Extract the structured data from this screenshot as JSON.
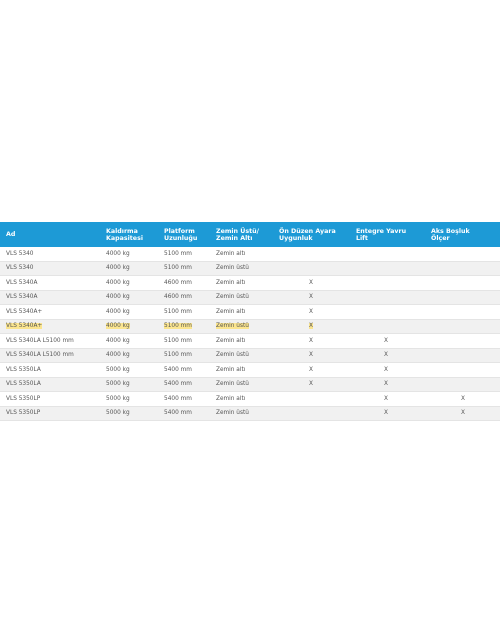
{
  "table": {
    "headers": [
      "Ad",
      "Kaldırma\nKapasitesi",
      "Platform\nUzunluğu",
      "Zemin Üstü/\nZemin Altı",
      "Ön Düzen Ayara\nUygunluk",
      "Entegre Yavru\nLift",
      "Aks Boşluk\nÖlçer"
    ],
    "rows": [
      [
        "VLS 5340",
        "4000 kg",
        "5100 mm",
        "Zemin altı",
        null,
        null,
        null
      ],
      [
        "VLS 5340",
        "4000 kg",
        "5100 mm",
        "Zemin üstü",
        null,
        null,
        null
      ],
      [
        "VLS 5340A",
        "4000 kg",
        "4600 mm",
        "Zemin altı",
        "X",
        null,
        null
      ],
      [
        "VLS 5340A",
        "4000 kg",
        "4600 mm",
        "Zemin üstü",
        "X",
        null,
        null
      ],
      [
        "VLS 5340A+",
        "4000 kg",
        "5100 mm",
        "Zemin altı",
        "X",
        null,
        null
      ],
      [
        "VLS 5340A+",
        "4000 kg",
        "5100 mm",
        "Zemin üstü",
        "X",
        null,
        null
      ],
      [
        "VLS 5340LA L5100 mm",
        "4000 kg",
        "5100 mm",
        "Zemin altı",
        "X",
        "X",
        null
      ],
      [
        "VLS 5340LA L5100 mm",
        "4000 kg",
        "5100 mm",
        "Zemin üstü",
        "X",
        "X",
        null
      ],
      [
        "VLS 5350LA",
        "5000 kg",
        "5400 mm",
        "Zemin altı",
        "X",
        "X",
        null
      ],
      [
        "VLS 5350LA",
        "5000 kg",
        "5400 mm",
        "Zemin üstü",
        "X",
        "X",
        null
      ],
      [
        "VLS 5350LP",
        "5000 kg",
        "5400 mm",
        "Zemin altı",
        null,
        "X",
        "X"
      ],
      [
        "VLS 5350LP",
        "5000 kg",
        "5400 mm",
        "Zemin üstü",
        null,
        "X",
        "X"
      ]
    ],
    "highlighted_row": 5
  }
}
